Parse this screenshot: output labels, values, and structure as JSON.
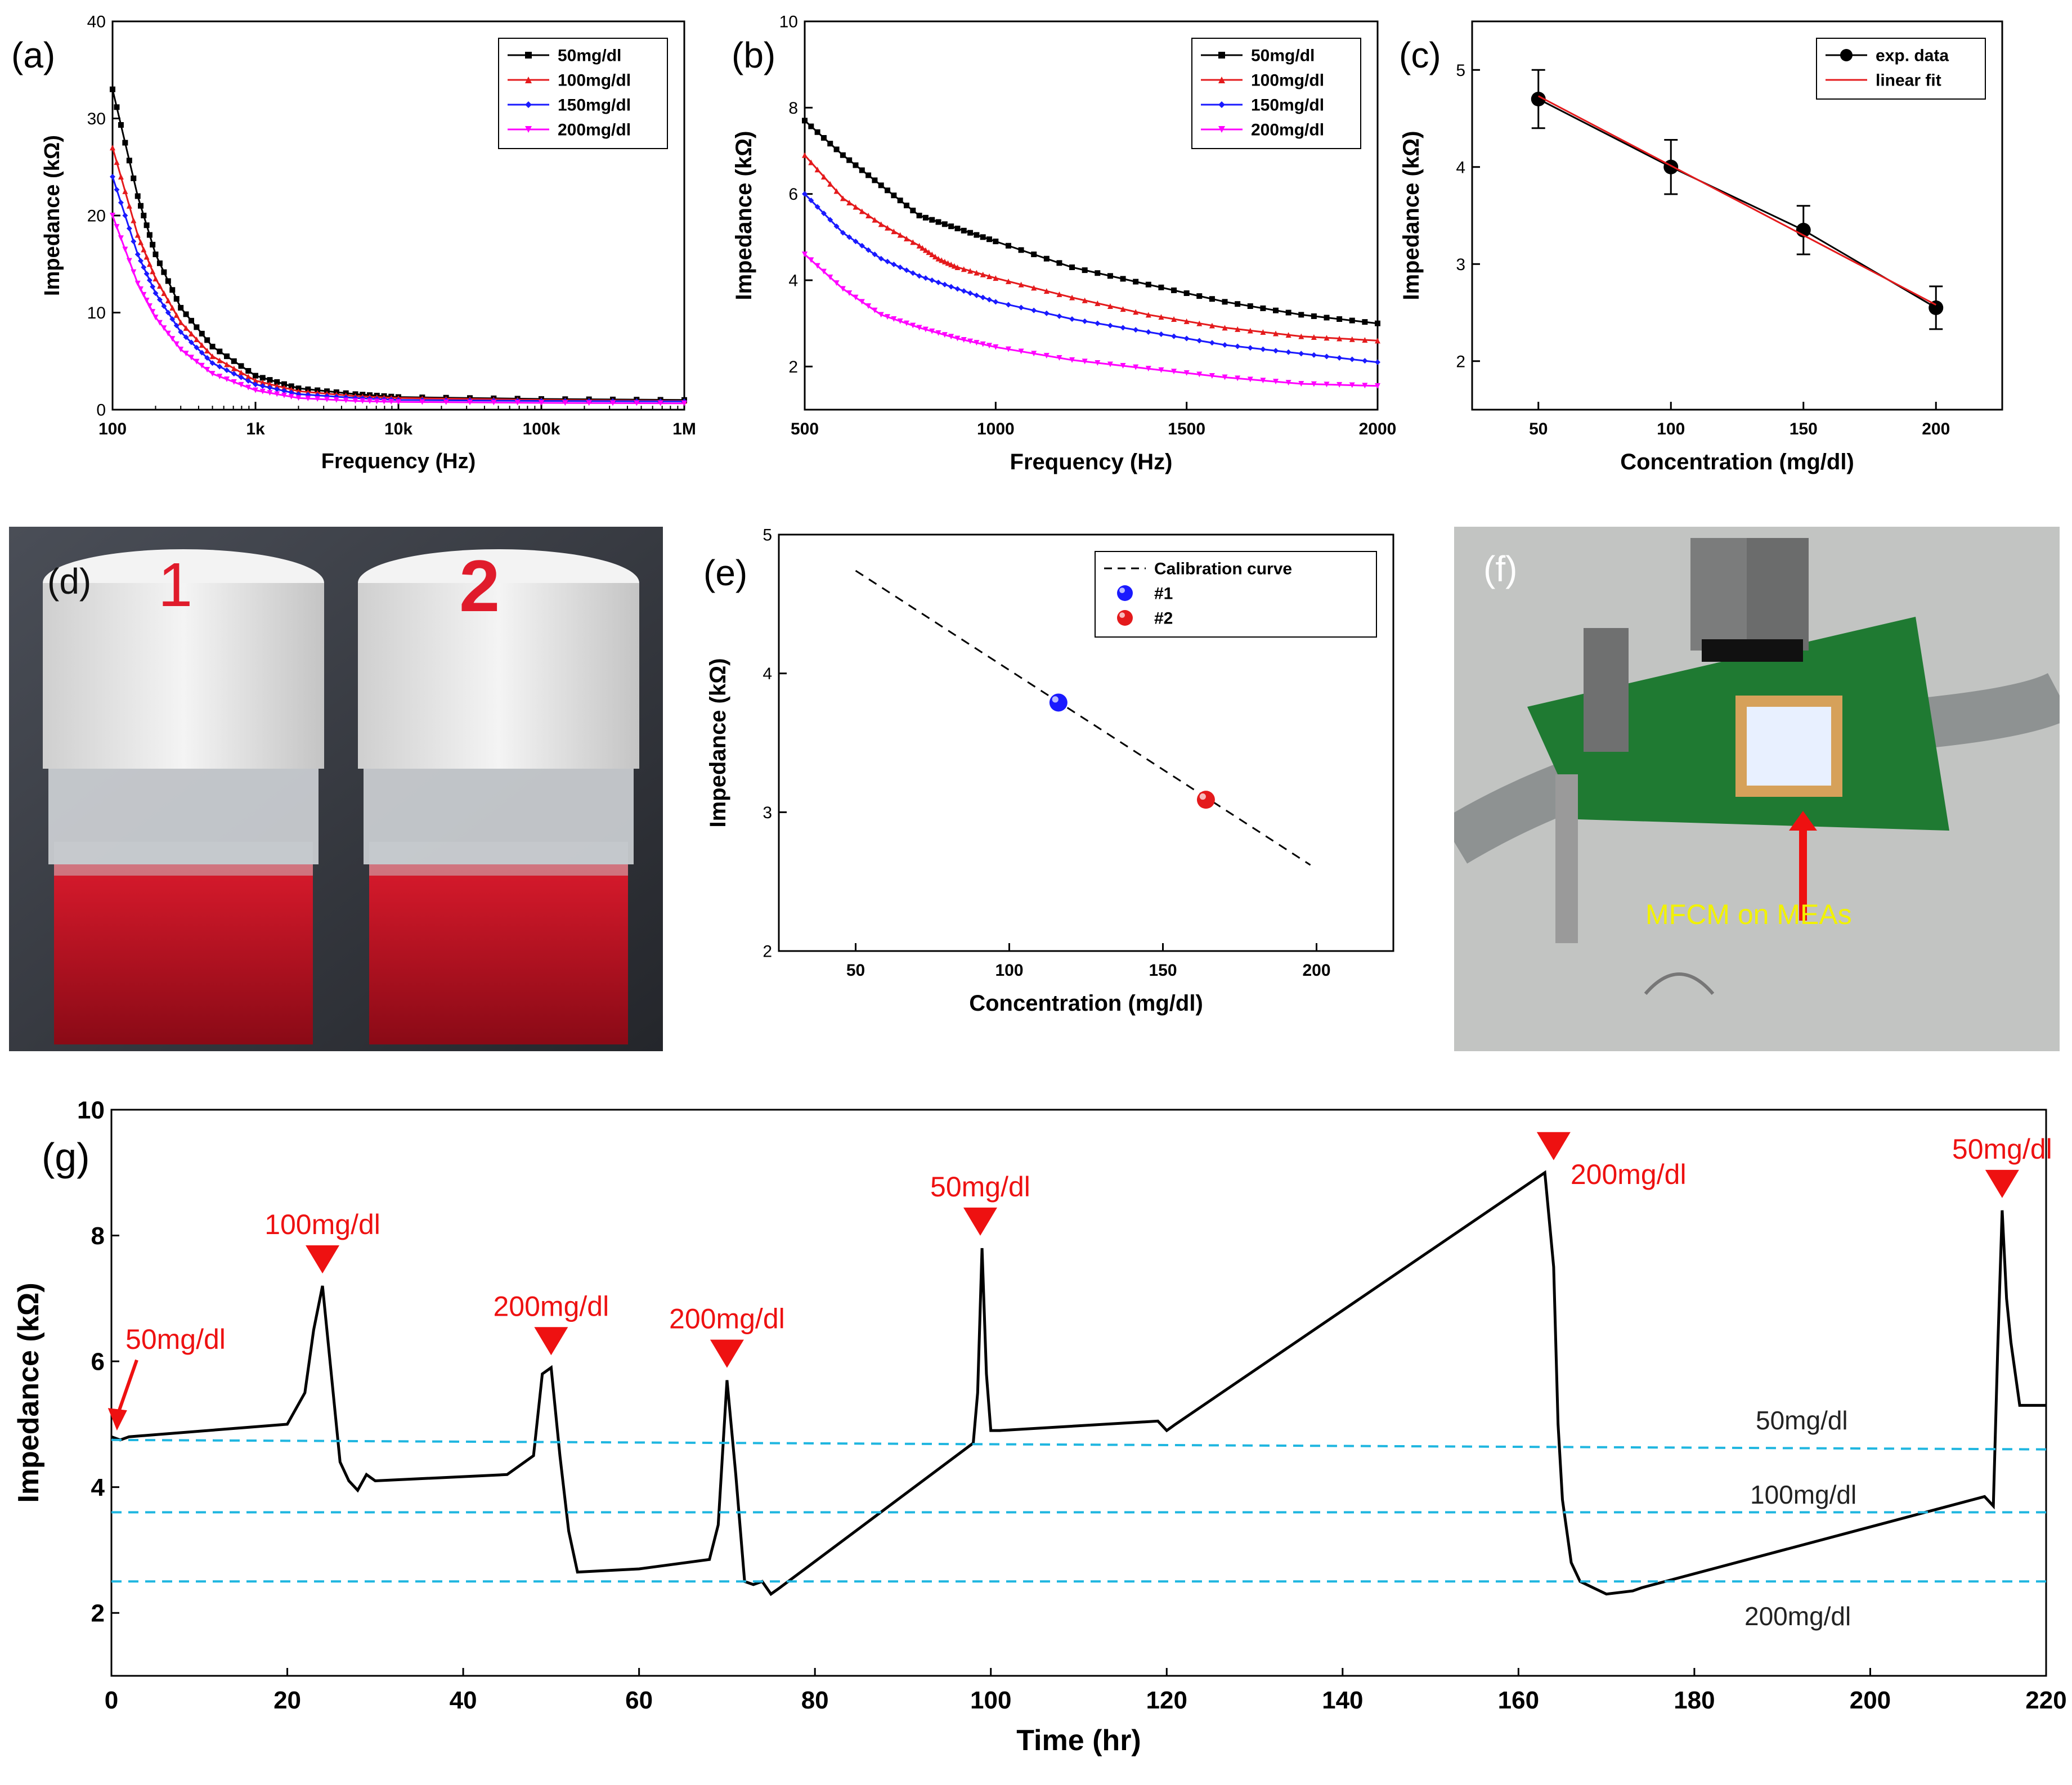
{
  "colors": {
    "black": "#000000",
    "red": "#e41a1c",
    "blue": "#1a1aff",
    "magenta": "#ff00ff",
    "cyan_dash": "#1fb6e0",
    "marker_red": "#ee1111",
    "annotation_yellow": "#f2f200"
  },
  "chart_data": [
    {
      "id": "a",
      "panel_label": "(a)",
      "type": "line",
      "xlabel": "Frequency (Hz)",
      "ylabel": "Impedance (kΩ)",
      "x_scale": "log",
      "xlim": [
        100,
        1000000
      ],
      "ylim": [
        0,
        40
      ],
      "x_ticks": [
        {
          "v": 100,
          "label": "100"
        },
        {
          "v": 1000,
          "label": "1k"
        },
        {
          "v": 10000,
          "label": "10k"
        },
        {
          "v": 100000,
          "label": "100k"
        },
        {
          "v": 1000000,
          "label": "1M"
        }
      ],
      "y_ticks": [
        0,
        10,
        20,
        30,
        40
      ],
      "legend_position": "top-right",
      "series": [
        {
          "name": "50mg/dl",
          "color": "#000000",
          "marker": "square",
          "x": [
            100,
            150,
            200,
            300,
            500,
            1000,
            2000,
            5000,
            10000,
            100000,
            1000000
          ],
          "y": [
            33,
            22,
            16,
            10.5,
            6.5,
            3.5,
            2.2,
            1.6,
            1.3,
            1.1,
            1.0
          ]
        },
        {
          "name": "100mg/dl",
          "color": "#e41a1c",
          "marker": "triangle-up",
          "x": [
            100,
            150,
            200,
            300,
            500,
            1000,
            2000,
            5000,
            10000,
            100000,
            1000000
          ],
          "y": [
            27,
            18,
            13.5,
            9,
            5.5,
            3.0,
            1.9,
            1.4,
            1.2,
            1.0,
            0.9
          ]
        },
        {
          "name": "150mg/dl",
          "color": "#1a1aff",
          "marker": "diamond",
          "x": [
            100,
            150,
            200,
            300,
            500,
            1000,
            2000,
            5000,
            10000,
            100000,
            1000000
          ],
          "y": [
            24,
            16,
            12,
            8,
            4.8,
            2.6,
            1.6,
            1.2,
            1.0,
            0.9,
            0.85
          ]
        },
        {
          "name": "200mg/dl",
          "color": "#ff00ff",
          "marker": "triangle-down",
          "x": [
            100,
            150,
            200,
            300,
            500,
            1000,
            2000,
            5000,
            10000,
            100000,
            1000000
          ],
          "y": [
            20,
            13,
            9.5,
            6.2,
            3.7,
            2.0,
            1.2,
            0.9,
            0.8,
            0.7,
            0.65
          ]
        }
      ]
    },
    {
      "id": "b",
      "panel_label": "(b)",
      "type": "line",
      "xlabel": "Frequency (Hz)",
      "ylabel": "Impedance (kΩ)",
      "x_scale": "linear",
      "xlim": [
        500,
        2000
      ],
      "ylim": [
        1,
        10
      ],
      "x_ticks": [
        {
          "v": 500,
          "label": "500"
        },
        {
          "v": 1000,
          "label": "1000"
        },
        {
          "v": 1500,
          "label": "1500"
        },
        {
          "v": 2000,
          "label": "2000"
        }
      ],
      "y_ticks": [
        2,
        4,
        6,
        8,
        10
      ],
      "legend_position": "top-right",
      "series": [
        {
          "name": "50mg/dl",
          "color": "#000000",
          "marker": "square",
          "x": [
            500,
            600,
            700,
            800,
            900,
            1000,
            1200,
            1400,
            1600,
            1800,
            2000
          ],
          "y": [
            7.7,
            6.9,
            6.2,
            5.5,
            5.2,
            4.9,
            4.3,
            3.9,
            3.5,
            3.2,
            3.0
          ]
        },
        {
          "name": "100mg/dl",
          "color": "#e41a1c",
          "marker": "triangle-up",
          "x": [
            500,
            600,
            700,
            800,
            850,
            900,
            1000,
            1200,
            1400,
            1600,
            1800,
            2000
          ],
          "y": [
            6.9,
            5.9,
            5.3,
            4.8,
            4.5,
            4.3,
            4.05,
            3.6,
            3.2,
            2.9,
            2.7,
            2.6
          ]
        },
        {
          "name": "150mg/dl",
          "color": "#1a1aff",
          "marker": "diamond",
          "x": [
            500,
            600,
            700,
            800,
            900,
            1000,
            1200,
            1400,
            1600,
            1800,
            2000
          ],
          "y": [
            6.0,
            5.1,
            4.5,
            4.1,
            3.8,
            3.5,
            3.1,
            2.8,
            2.5,
            2.3,
            2.1
          ]
        },
        {
          "name": "200mg/dl",
          "color": "#ff00ff",
          "marker": "triangle-down",
          "x": [
            500,
            600,
            700,
            800,
            900,
            1000,
            1200,
            1400,
            1600,
            1800,
            2000
          ],
          "y": [
            4.6,
            3.8,
            3.2,
            2.9,
            2.65,
            2.45,
            2.15,
            1.95,
            1.75,
            1.6,
            1.55
          ]
        }
      ]
    },
    {
      "id": "c",
      "panel_label": "(c)",
      "type": "scatter",
      "xlabel": "Concentration (mg/dl)",
      "ylabel": "Impedance (kΩ)",
      "x_scale": "linear",
      "xlim": [
        25,
        225
      ],
      "ylim": [
        1.5,
        5.5
      ],
      "x_ticks": [
        {
          "v": 50,
          "label": "50"
        },
        {
          "v": 100,
          "label": "100"
        },
        {
          "v": 150,
          "label": "150"
        },
        {
          "v": 200,
          "label": "200"
        }
      ],
      "y_ticks": [
        2,
        3,
        4,
        5
      ],
      "legend_position": "top-right",
      "series": [
        {
          "name": "exp. data",
          "color": "#000000",
          "marker": "circle",
          "x": [
            50,
            100,
            150,
            200
          ],
          "y": [
            4.7,
            4.0,
            3.35,
            2.55
          ],
          "err": [
            0.3,
            0.28,
            0.25,
            0.22
          ]
        },
        {
          "name": "linear fit",
          "color": "#e41a1c",
          "marker": "none",
          "x": [
            50,
            200
          ],
          "y": [
            4.73,
            2.58
          ]
        }
      ]
    },
    {
      "id": "e",
      "panel_label": "(e)",
      "type": "scatter",
      "xlabel": "Concentration (mg/dl)",
      "ylabel": "Impedance (kΩ)",
      "x_scale": "linear",
      "xlim": [
        25,
        225
      ],
      "ylim": [
        2,
        5
      ],
      "x_ticks": [
        {
          "v": 50,
          "label": "50"
        },
        {
          "v": 100,
          "label": "100"
        },
        {
          "v": 150,
          "label": "150"
        },
        {
          "v": 200,
          "label": "200"
        }
      ],
      "y_ticks": [
        2,
        3,
        4,
        5
      ],
      "legend_position": "top-right",
      "series": [
        {
          "name": "Calibration curve",
          "color": "#000000",
          "marker": "none",
          "dash": true,
          "x": [
            50,
            198
          ],
          "y": [
            4.74,
            2.62
          ]
        },
        {
          "name": "#1",
          "color": "#1a1aff",
          "marker": "ball",
          "x": [
            116
          ],
          "y": [
            3.79
          ]
        },
        {
          "name": "#2",
          "color": "#e41a1c",
          "marker": "ball",
          "x": [
            164
          ],
          "y": [
            3.09
          ]
        }
      ]
    },
    {
      "id": "g",
      "panel_label": "(g)",
      "type": "line",
      "xlabel": "Time (hr)",
      "ylabel": "Impedance (kΩ)",
      "x_scale": "linear",
      "xlim": [
        0,
        220
      ],
      "ylim": [
        1,
        10
      ],
      "x_ticks": [
        {
          "v": 0,
          "label": "0"
        },
        {
          "v": 20,
          "label": "20"
        },
        {
          "v": 40,
          "label": "40"
        },
        {
          "v": 60,
          "label": "60"
        },
        {
          "v": 80,
          "label": "80"
        },
        {
          "v": 100,
          "label": "100"
        },
        {
          "v": 120,
          "label": "120"
        },
        {
          "v": 140,
          "label": "140"
        },
        {
          "v": 160,
          "label": "160"
        },
        {
          "v": 180,
          "label": "180"
        },
        {
          "v": 200,
          "label": "200"
        },
        {
          "v": 220,
          "label": "220"
        }
      ],
      "y_ticks": [
        2,
        4,
        6,
        8,
        10
      ],
      "series": [
        {
          "name": "",
          "color": "#000000",
          "marker": "none",
          "x": [
            0,
            1,
            2,
            20,
            22,
            23,
            24,
            25,
            26,
            27,
            28,
            29,
            30,
            45,
            48,
            49,
            50,
            51,
            52,
            53,
            60,
            68,
            69,
            70,
            71,
            72,
            73,
            74,
            75,
            76,
            98,
            98.5,
            99,
            99.5,
            100,
            101,
            119,
            120,
            121,
            163,
            164,
            164.5,
            165,
            166,
            167,
            170,
            173,
            174,
            213,
            214,
            214.5,
            215,
            215.5,
            216,
            217,
            220
          ],
          "y": [
            4.8,
            4.75,
            4.8,
            5.0,
            5.5,
            6.5,
            7.2,
            5.8,
            4.4,
            4.1,
            3.95,
            4.2,
            4.1,
            4.2,
            4.5,
            5.8,
            5.9,
            4.5,
            3.3,
            2.65,
            2.7,
            2.85,
            3.4,
            5.7,
            4.2,
            2.5,
            2.45,
            2.5,
            2.3,
            2.4,
            4.7,
            5.5,
            7.8,
            5.8,
            4.9,
            4.9,
            5.05,
            4.9,
            5.0,
            9.0,
            7.5,
            5.0,
            3.8,
            2.8,
            2.5,
            2.3,
            2.35,
            2.4,
            3.85,
            3.7,
            6.2,
            8.4,
            7.0,
            6.3,
            5.3,
            5.3
          ]
        },
        {
          "name": "50mg/dl",
          "color": "#1fb6e0",
          "marker": "none",
          "dash": true,
          "x": [
            0,
            220
          ],
          "y": [
            4.75,
            4.6
          ]
        },
        {
          "name": "100mg/dl",
          "color": "#1fb6e0",
          "marker": "none",
          "dash": true,
          "x": [
            0,
            220
          ],
          "y": [
            3.6,
            3.6
          ]
        },
        {
          "name": "200mg/dl",
          "color": "#1fb6e0",
          "marker": "none",
          "dash": true,
          "x": [
            0,
            220
          ],
          "y": [
            2.5,
            2.5
          ]
        }
      ],
      "annotations": [
        {
          "text": "50mg/dl",
          "x": 0.5,
          "y": 4.9,
          "kind": "arrow",
          "label_x": 8,
          "label_y": 6.2
        },
        {
          "text": "100mg/dl",
          "x": 24,
          "y": 7.2,
          "kind": "triangle"
        },
        {
          "text": "200mg/dl",
          "x": 50,
          "y": 5.9,
          "kind": "triangle"
        },
        {
          "text": "200mg/dl",
          "x": 70,
          "y": 5.7,
          "kind": "triangle"
        },
        {
          "text": "50mg/dl",
          "x": 98.8,
          "y": 7.8,
          "kind": "triangle"
        },
        {
          "text": "200mg/dl",
          "x": 164,
          "y": 9.0,
          "kind": "triangle-right"
        },
        {
          "text": "50mg/dl",
          "x": 215,
          "y": 8.4,
          "kind": "triangle"
        }
      ]
    }
  ],
  "photos": {
    "d": {
      "panel_label": "(d)",
      "vial_1_mark": "1",
      "vial_2_mark": "2"
    },
    "f": {
      "panel_label": "(f)",
      "annotation": "MFCM on MEAs"
    }
  }
}
